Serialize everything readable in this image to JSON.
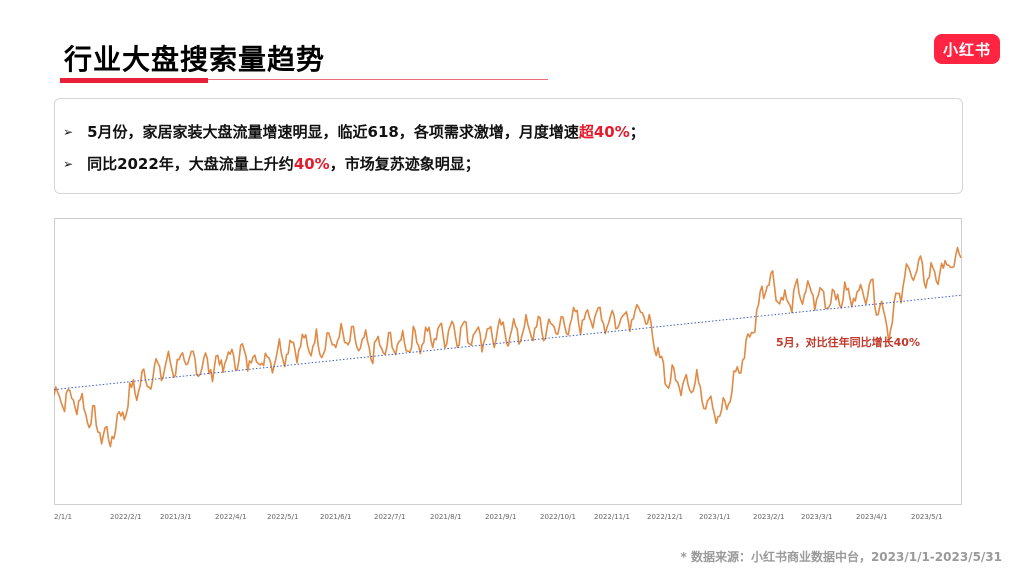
{
  "header": {
    "title": "行业大盘搜索量趋势",
    "logo_text": "小红书"
  },
  "summary": {
    "bullet_1": {
      "pre": "5月份，家居家装大盘流量增速明显，临近618，各项需求激增，月度增速",
      "highlight": "超40%",
      "post": "；"
    },
    "bullet_2": {
      "pre": "同比2022年，大盘流量上升约",
      "highlight": "40%",
      "post": "，市场复苏迹象明显；"
    }
  },
  "chart_data": {
    "type": "line",
    "title": "",
    "xlabel": "",
    "ylabel": "",
    "x_ticks": [
      "2/1/1",
      "2022/2/1",
      "2021/3/1",
      "2022/4/1",
      "2022/5/1",
      "2021/6/1",
      "2022/7/1",
      "2021/8/1",
      "2021/9/1",
      "2022/10/1",
      "2022/11/1",
      "2022/12/1",
      "2023/1/1",
      "2023/2/1",
      "2023/3/1",
      "2023/4/1",
      "2023/5/1"
    ],
    "y_axis": "unlabeled (relative search volume)",
    "series_color": "#e08a45",
    "trend_color": "#3a5fbf",
    "grid": false,
    "series": [
      {
        "name": "",
        "monthly_points": [
          {
            "x": "2022/1/1",
            "y": 38
          },
          {
            "x": "2022/1/15",
            "y": 36
          },
          {
            "x": "2022/2/1",
            "y": 22
          },
          {
            "x": "2022/2/15",
            "y": 40
          },
          {
            "x": "2022/3/1",
            "y": 47
          },
          {
            "x": "2022/3/15",
            "y": 50
          },
          {
            "x": "2022/4/1",
            "y": 48
          },
          {
            "x": "2022/4/15",
            "y": 52
          },
          {
            "x": "2022/5/1",
            "y": 50
          },
          {
            "x": "2022/5/15",
            "y": 55
          },
          {
            "x": "2022/6/1",
            "y": 56
          },
          {
            "x": "2022/6/15",
            "y": 58
          },
          {
            "x": "2022/7/1",
            "y": 54
          },
          {
            "x": "2022/7/15",
            "y": 56
          },
          {
            "x": "2022/8/1",
            "y": 58
          },
          {
            "x": "2022/8/15",
            "y": 61
          },
          {
            "x": "2022/9/1",
            "y": 59
          },
          {
            "x": "2022/9/15",
            "y": 60
          },
          {
            "x": "2022/10/1",
            "y": 61
          },
          {
            "x": "2022/10/15",
            "y": 62
          },
          {
            "x": "2022/11/1",
            "y": 66
          },
          {
            "x": "2022/11/15",
            "y": 64
          },
          {
            "x": "2022/12/1",
            "y": 68
          },
          {
            "x": "2022/12/15",
            "y": 44
          },
          {
            "x": "2023/1/1",
            "y": 42
          },
          {
            "x": "2023/1/15",
            "y": 30
          },
          {
            "x": "2023/2/1",
            "y": 60
          },
          {
            "x": "2023/2/10",
            "y": 80
          },
          {
            "x": "2023/2/20",
            "y": 70
          },
          {
            "x": "2023/3/1",
            "y": 74
          },
          {
            "x": "2023/3/15",
            "y": 72
          },
          {
            "x": "2023/4/1",
            "y": 73
          },
          {
            "x": "2023/4/10",
            "y": 76
          },
          {
            "x": "2023/4/20",
            "y": 62
          },
          {
            "x": "2023/5/1",
            "y": 82
          },
          {
            "x": "2023/5/15",
            "y": 80
          },
          {
            "x": "2023/5/31",
            "y": 86
          }
        ]
      }
    ],
    "trend_line": {
      "start": {
        "x": "2022/1/1",
        "y": 40
      },
      "end": {
        "x": "2023/5/31",
        "y": 73
      }
    },
    "annotation": "5月，对比往年同比增长40%"
  },
  "footer": {
    "source": "* 数据来源：小红书商业数据中台，2023/1/1-2023/5/31"
  }
}
